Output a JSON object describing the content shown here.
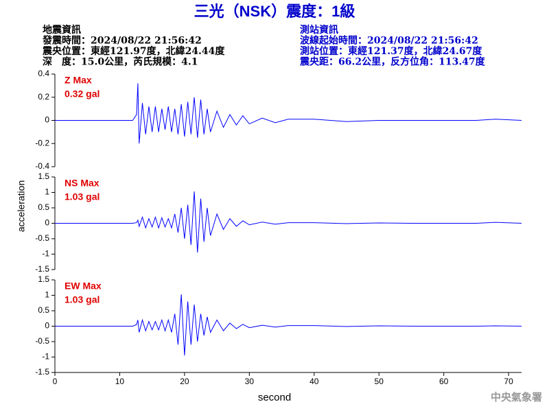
{
  "title": "三光（NSK）震度：1級",
  "info_left": [
    "地震資訊",
    "發震時間：2024/08/22 21:56:42",
    "震央位置：東經121.97度，北緯24.44度",
    "深　度：15.0公里，芮氏規模：4.1"
  ],
  "info_right": [
    "測站資訊",
    "波線起始時間：2024/08/22 21:56:42",
    "測站位置：東經121.37度，北緯24.67度",
    "震央距：66.2公里，反方位角：113.47度"
  ],
  "footer": "中央氣象署",
  "chart_data": [
    {
      "type": "line",
      "annotations": [
        "Z Max",
        "0.32 gal"
      ],
      "color": "#0000ff",
      "x": [
        0,
        4,
        8,
        12,
        12.6,
        12.8,
        13,
        13.5,
        14,
        14.5,
        15,
        15.5,
        16,
        16.5,
        17,
        17.5,
        18,
        18.5,
        19,
        19.5,
        20,
        20.5,
        21,
        21.5,
        22,
        22.5,
        23,
        23.5,
        24,
        25,
        26,
        27,
        28,
        29,
        30,
        32,
        34,
        36,
        40,
        45,
        50,
        55,
        60,
        65,
        68,
        72
      ],
      "values": [
        0,
        0,
        0,
        0,
        0.05,
        0.32,
        -0.2,
        0.15,
        -0.12,
        0.12,
        -0.1,
        0.12,
        -0.1,
        0.1,
        -0.08,
        0.12,
        -0.1,
        0.1,
        -0.12,
        0.14,
        -0.14,
        0.16,
        -0.12,
        0.2,
        -0.15,
        0.18,
        -0.12,
        0.1,
        -0.1,
        0.08,
        -0.06,
        0.05,
        -0.04,
        0.04,
        -0.03,
        0.02,
        -0.02,
        0.01,
        0.01,
        -0.01,
        0,
        0,
        0,
        0,
        0.01,
        0
      ],
      "xlim": [
        0,
        72
      ],
      "ylim": [
        -0.4,
        0.4
      ],
      "yticks": [
        -0.4,
        -0.2,
        0,
        0.2,
        0.4
      ]
    },
    {
      "type": "line",
      "annotations": [
        "NS Max",
        "1.03 gal"
      ],
      "color": "#0000ff",
      "ylabel": "acceleration",
      "x": [
        0,
        4,
        8,
        12,
        12.6,
        12.8,
        13,
        13.5,
        14,
        14.5,
        15,
        15.5,
        16,
        16.5,
        17,
        17.5,
        18,
        18.5,
        19,
        19.5,
        20,
        20.5,
        21,
        21.5,
        22,
        22.5,
        23,
        23.5,
        24,
        25,
        26,
        27,
        28,
        29,
        30,
        32,
        34,
        36,
        40,
        45,
        50,
        55,
        60,
        65,
        68,
        72
      ],
      "values": [
        0,
        0,
        0,
        0,
        0.02,
        0.1,
        -0.1,
        0.2,
        -0.15,
        0.15,
        -0.12,
        0.2,
        -0.15,
        0.18,
        -0.12,
        0.15,
        -0.15,
        0.3,
        -0.3,
        0.5,
        -0.5,
        0.6,
        -0.7,
        1.03,
        -0.95,
        0.8,
        -0.6,
        0.5,
        -0.4,
        0.3,
        -0.2,
        0.15,
        -0.1,
        0.08,
        -0.05,
        0.04,
        -0.03,
        0.02,
        0.02,
        -0.01,
        0.01,
        0,
        0,
        0,
        0.03,
        0
      ],
      "xlim": [
        0,
        72
      ],
      "ylim": [
        -1.5,
        1.5
      ],
      "yticks": [
        -1.5,
        -1,
        -0.5,
        0,
        0.5,
        1,
        1.5
      ]
    },
    {
      "type": "line",
      "annotations": [
        "EW Max",
        "1.03 gal"
      ],
      "color": "#0000ff",
      "xlabel": "second",
      "x": [
        0,
        4,
        8,
        12,
        12.6,
        12.8,
        13,
        13.5,
        14,
        14.5,
        15,
        15.5,
        16,
        16.5,
        17,
        17.5,
        18,
        18.5,
        19,
        19.5,
        20,
        20.5,
        21,
        21.5,
        22,
        22.5,
        23,
        23.5,
        24,
        25,
        26,
        27,
        28,
        29,
        30,
        32,
        34,
        36,
        40,
        45,
        50,
        55,
        60,
        65,
        68,
        72
      ],
      "values": [
        0,
        0,
        0,
        0,
        0.05,
        0.2,
        -0.2,
        0.2,
        -0.15,
        0.15,
        -0.12,
        0.15,
        -0.12,
        0.2,
        -0.15,
        0.2,
        -0.2,
        0.4,
        -0.6,
        1.03,
        -0.95,
        0.8,
        -0.6,
        0.7,
        -0.5,
        0.4,
        -0.3,
        0.3,
        -0.2,
        0.2,
        -0.15,
        0.1,
        -0.08,
        0.06,
        -0.05,
        0.03,
        -0.03,
        0.02,
        0.02,
        -0.01,
        0.01,
        0,
        0,
        0,
        0.01,
        0
      ],
      "xlim": [
        0,
        72
      ],
      "ylim": [
        -1.5,
        1.5
      ],
      "yticks": [
        -1.5,
        -1,
        -0.5,
        0,
        0.5,
        1,
        1.5
      ],
      "xticks": [
        0,
        10,
        20,
        30,
        40,
        50,
        60,
        70
      ]
    }
  ]
}
